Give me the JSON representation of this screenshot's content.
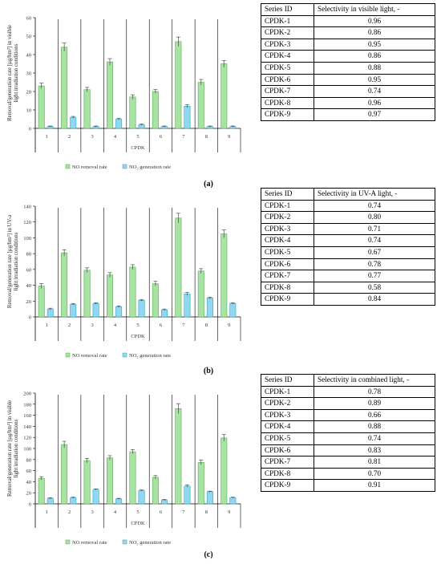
{
  "colors": {
    "no": "#a9e3a3",
    "no_stroke": "#5aaa55",
    "no2": "#8fd8ef",
    "no2_stroke": "#3d9fbf",
    "grid": "#000000"
  },
  "chart_data": [
    {
      "type": "bar",
      "xlabel": "CPDK",
      "ylabel": "Removal/generation rate [µg/hm²] in visible light irradiation conditions",
      "ylim": [
        0,
        60
      ],
      "yticks": [
        0,
        10,
        20,
        30,
        40,
        50,
        60
      ],
      "categories": [
        "1",
        "2",
        "3",
        "4",
        "5",
        "6",
        "7",
        "8",
        "9"
      ],
      "legend": [
        "NO removal rate",
        "NO₂ generation rate"
      ],
      "series": [
        {
          "name": "NO removal rate",
          "values": [
            23,
            44,
            21,
            36,
            17,
            20,
            47,
            25,
            35
          ],
          "errors": [
            1.5,
            2.2,
            1.2,
            1.8,
            1.2,
            1.0,
            2.5,
            1.5,
            1.8
          ]
        },
        {
          "name": "NO₂ generation rate",
          "values": [
            1,
            6,
            1,
            5,
            2,
            1,
            12,
            1,
            1
          ],
          "errors": [
            0.3,
            0.5,
            0.3,
            0.4,
            0.3,
            0.3,
            0.8,
            0.3,
            0.3
          ]
        }
      ]
    },
    {
      "type": "bar",
      "xlabel": "CPDK",
      "ylabel": "Removal/generation rate [µg/hm²] in UV-a light irradiation conditions",
      "ylim": [
        0,
        140
      ],
      "yticks": [
        0,
        20,
        40,
        60,
        80,
        100,
        120,
        140
      ],
      "categories": [
        "1",
        "2",
        "3",
        "4",
        "5",
        "6",
        "7",
        "8",
        "9"
      ],
      "legend": [
        "NO removal rate",
        "NO₂ generation rate"
      ],
      "series": [
        {
          "name": "NO removal rate",
          "values": [
            39,
            81,
            59,
            53,
            63,
            42,
            125,
            58,
            105
          ],
          "errors": [
            3,
            4,
            3,
            3,
            3,
            3,
            6,
            3,
            5
          ]
        },
        {
          "name": "NO₂ generation rate",
          "values": [
            10,
            16,
            17,
            13,
            21,
            9,
            29,
            24,
            17
          ],
          "errors": [
            1,
            1,
            1,
            1,
            1,
            1,
            2,
            1,
            1
          ]
        }
      ]
    },
    {
      "type": "bar",
      "xlabel": "CPDK",
      "ylabel": "Removal/generation rate [µg/hm²] in visible light irradiation conditions",
      "ylim": [
        0,
        200
      ],
      "yticks": [
        0,
        20,
        40,
        60,
        80,
        100,
        120,
        140,
        160,
        180,
        200
      ],
      "categories": [
        "1",
        "2",
        "3",
        "4",
        "5",
        "6",
        "7",
        "8",
        "9"
      ],
      "legend": [
        "NO removal rate",
        "NO₂ generation rate"
      ],
      "series": [
        {
          "name": "NO removal rate",
          "values": [
            46,
            107,
            78,
            83,
            94,
            48,
            172,
            75,
            119
          ],
          "errors": [
            3,
            6,
            4,
            4,
            4,
            3,
            9,
            4,
            6
          ]
        },
        {
          "name": "NO₂ generation rate",
          "values": [
            10,
            11,
            26,
            9,
            24,
            7,
            32,
            22,
            11
          ],
          "errors": [
            1,
            1,
            1,
            1,
            1,
            1,
            2,
            1,
            1
          ]
        }
      ]
    }
  ],
  "captions": [
    "(a)",
    "(b)",
    "(c)"
  ],
  "tables": [
    {
      "headers": [
        "Series ID",
        "Selectivity in visible light, -"
      ],
      "rows": [
        [
          "CPDK-1",
          "0.96"
        ],
        [
          "CPDK-2",
          "0.86"
        ],
        [
          "CPDK-3",
          "0.95"
        ],
        [
          "CPDK-4",
          "0.86"
        ],
        [
          "CPDK-5",
          "0.88"
        ],
        [
          "CPDK-6",
          "0.95"
        ],
        [
          "CPDK-7",
          "0.74"
        ],
        [
          "CPDK-8",
          "0.96"
        ],
        [
          "CPDK-9",
          "0.97"
        ]
      ]
    },
    {
      "headers": [
        "Series ID",
        "Selectivity in UV-A light, -"
      ],
      "rows": [
        [
          "CPDK-1",
          "0.74"
        ],
        [
          "CPDK-2",
          "0.80"
        ],
        [
          "CPDK-3",
          "0.71"
        ],
        [
          "CPDK-4",
          "0.74"
        ],
        [
          "CPDK-5",
          "0.67"
        ],
        [
          "CPDK-6",
          "0.78"
        ],
        [
          "CPDK-7",
          "0.77"
        ],
        [
          "CPDK-8",
          "0.58"
        ],
        [
          "CPDK-9",
          "0.84"
        ]
      ]
    },
    {
      "headers": [
        "Series ID",
        "Selectivity in combined light, -"
      ],
      "rows": [
        [
          "CPDK-1",
          "0.78"
        ],
        [
          "CPDK-2",
          "0.89"
        ],
        [
          "CPDK-3",
          "0.66"
        ],
        [
          "CPDK-4",
          "0.88"
        ],
        [
          "CPDK-5",
          "0.74"
        ],
        [
          "CPDK-6",
          "0.83"
        ],
        [
          "CPDK-7",
          "0.81"
        ],
        [
          "CPDK-8",
          "0.70"
        ],
        [
          "CPDK-9",
          "0.91"
        ]
      ]
    }
  ]
}
